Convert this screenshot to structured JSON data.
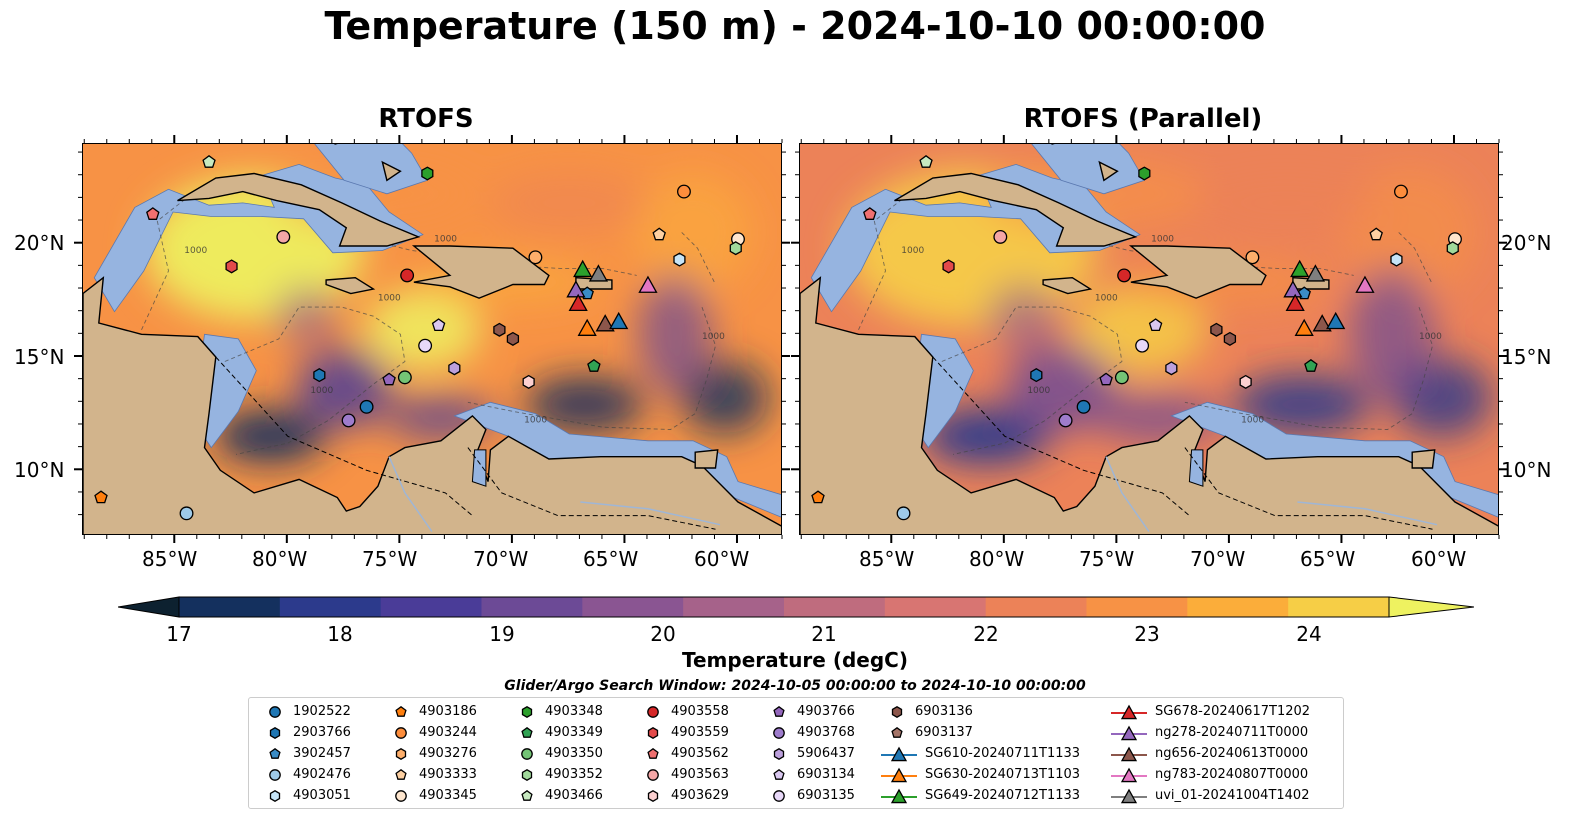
{
  "title": "Temperature (150 m) - 2024-10-10 00:00:00",
  "panels": [
    {
      "title": "RTOFS"
    },
    {
      "title": "RTOFS (Parallel)"
    }
  ],
  "axes": {
    "lon_ticks": [
      "85°W",
      "80°W",
      "75°W",
      "70°W",
      "65°W",
      "60°W"
    ],
    "lat_ticks": [
      "20°N",
      "15°N",
      "10°N"
    ]
  },
  "contour_label": "1000",
  "colorbar": {
    "label": "Temperature (degC)",
    "ticks": [
      "17",
      "18",
      "19",
      "20",
      "21",
      "22",
      "23",
      "24"
    ],
    "colors": [
      "#0d2130",
      "#14305e",
      "#2c3a8c",
      "#4a3c98",
      "#6c4a96",
      "#8a5592",
      "#a6628a",
      "#bf6c7e",
      "#d87572",
      "#ec8258",
      "#f79245",
      "#fbad3a",
      "#f6ce46",
      "#eef260"
    ]
  },
  "search_window": "Glider/Argo Search Window: 2024-10-05 00:00:00 to 2024-10-10 00:00:00",
  "legend": [
    [
      {
        "label": "1902522",
        "shape": "circle",
        "color": "#1f77b4"
      },
      {
        "label": "2903766",
        "shape": "hexagon",
        "color": "#1f77b4"
      },
      {
        "label": "3902457",
        "shape": "pentagon",
        "color": "#3a8cc6"
      },
      {
        "label": "4902476",
        "shape": "circle",
        "color": "#9ecae9"
      },
      {
        "label": "4903051",
        "shape": "hexagon",
        "color": "#c6e4f7"
      }
    ],
    [
      {
        "label": "4903186",
        "shape": "pentagon",
        "color": "#ff7f0e"
      },
      {
        "label": "4903244",
        "shape": "circle",
        "color": "#fd8d3c"
      },
      {
        "label": "4903276",
        "shape": "hexagon",
        "color": "#fdae6b"
      },
      {
        "label": "4903333",
        "shape": "pentagon",
        "color": "#fdd0a2"
      },
      {
        "label": "4903345",
        "shape": "circle",
        "color": "#fee6ce"
      }
    ],
    [
      {
        "label": "4903348",
        "shape": "hexagon",
        "color": "#2ca02c"
      },
      {
        "label": "4903349",
        "shape": "pentagon",
        "color": "#31a354"
      },
      {
        "label": "4903350",
        "shape": "circle",
        "color": "#74c476"
      },
      {
        "label": "4903352",
        "shape": "hexagon",
        "color": "#a1d99b"
      },
      {
        "label": "4903466",
        "shape": "pentagon",
        "color": "#c7e9c0"
      }
    ],
    [
      {
        "label": "4903558",
        "shape": "circle",
        "color": "#d62728"
      },
      {
        "label": "4903559",
        "shape": "hexagon",
        "color": "#e34a4a"
      },
      {
        "label": "4903562",
        "shape": "pentagon",
        "color": "#f07070"
      },
      {
        "label": "4903563",
        "shape": "circle",
        "color": "#f4a6a6"
      },
      {
        "label": "4903629",
        "shape": "hexagon",
        "color": "#fcd0d0"
      }
    ],
    [
      {
        "label": "4903766",
        "shape": "pentagon",
        "color": "#9467bd"
      },
      {
        "label": "4903768",
        "shape": "circle",
        "color": "#9e7ccc"
      },
      {
        "label": "5906437",
        "shape": "hexagon",
        "color": "#bca0dc"
      },
      {
        "label": "6903134",
        "shape": "pentagon",
        "color": "#dac8f0"
      },
      {
        "label": "6903135",
        "shape": "circle",
        "color": "#e8d8f8"
      }
    ],
    [
      {
        "label": "6903136",
        "shape": "hexagon",
        "color": "#8c564b"
      },
      {
        "label": "6903137",
        "shape": "pentagon",
        "color": "#a47468"
      },
      {
        "label": "SG610-20240711T1133",
        "shape": "triangle-line",
        "color": "#1f77b4"
      },
      {
        "label": "SG630-20240713T1103",
        "shape": "triangle-line",
        "color": "#ff7f0e"
      },
      {
        "label": "SG649-20240712T1133",
        "shape": "triangle-line",
        "color": "#2ca02c"
      }
    ],
    [
      {
        "label": "SG678-20240617T1202",
        "shape": "triangle-line",
        "color": "#d62728"
      },
      {
        "label": "ng278-20240711T0000",
        "shape": "triangle-line",
        "color": "#9467bd"
      },
      {
        "label": "ng656-20240613T0000",
        "shape": "triangle-line",
        "color": "#8c564b"
      },
      {
        "label": "ng783-20240807T0000",
        "shape": "triangle-line",
        "color": "#e377c2"
      },
      {
        "label": "uvi_01-20241004T1402",
        "shape": "triangle-line",
        "color": "#7f7f7f"
      }
    ]
  ],
  "markers": [
    {
      "lon": -84.5,
      "lat": 8.1,
      "shape": "circle",
      "color": "#9ecae9"
    },
    {
      "lon": -88.3,
      "lat": 8.8,
      "shape": "pentagon",
      "color": "#ff7f0e"
    },
    {
      "lon": -83.5,
      "lat": 23.6,
      "shape": "pentagon",
      "color": "#c7e9c0"
    },
    {
      "lon": -86.0,
      "lat": 21.3,
      "shape": "pentagon",
      "color": "#f07070"
    },
    {
      "lon": -80.2,
      "lat": 20.3,
      "shape": "circle",
      "color": "#f4a6a6"
    },
    {
      "lon": -82.5,
      "lat": 19.0,
      "shape": "hexagon",
      "color": "#e34a4a"
    },
    {
      "lon": -73.8,
      "lat": 23.1,
      "shape": "hexagon",
      "color": "#2ca02c"
    },
    {
      "lon": -62.4,
      "lat": 22.3,
      "shape": "circle",
      "color": "#fd8d3c"
    },
    {
      "lon": -63.5,
      "lat": 20.4,
      "shape": "pentagon",
      "color": "#fdd0a2"
    },
    {
      "lon": -60.0,
      "lat": 20.2,
      "shape": "circle",
      "color": "#fee6ce"
    },
    {
      "lon": -60.1,
      "lat": 19.8,
      "shape": "hexagon",
      "color": "#a1d99b"
    },
    {
      "lon": -62.6,
      "lat": 19.3,
      "shape": "hexagon",
      "color": "#c6e4f7"
    },
    {
      "lon": -69.0,
      "lat": 19.4,
      "shape": "circle",
      "color": "#fdae6b"
    },
    {
      "lon": -74.7,
      "lat": 18.6,
      "shape": "circle",
      "color": "#d62728"
    },
    {
      "lon": -73.3,
      "lat": 16.4,
      "shape": "pentagon",
      "color": "#dac8f0"
    },
    {
      "lon": -73.9,
      "lat": 15.5,
      "shape": "circle",
      "color": "#e8d8f8"
    },
    {
      "lon": -72.6,
      "lat": 14.5,
      "shape": "hexagon",
      "color": "#bca0dc"
    },
    {
      "lon": -75.5,
      "lat": 14.0,
      "shape": "pentagon",
      "color": "#9467bd"
    },
    {
      "lon": -74.8,
      "lat": 14.1,
      "shape": "circle",
      "color": "#74c476"
    },
    {
      "lon": -78.6,
      "lat": 14.2,
      "shape": "hexagon",
      "color": "#1f77b4"
    },
    {
      "lon": -76.5,
      "lat": 12.8,
      "shape": "circle",
      "color": "#1f77b4"
    },
    {
      "lon": -77.3,
      "lat": 12.2,
      "shape": "circle",
      "color": "#9e7ccc"
    },
    {
      "lon": -70.6,
      "lat": 16.2,
      "shape": "hexagon",
      "color": "#8c564b"
    },
    {
      "lon": -70.0,
      "lat": 15.8,
      "shape": "hexagon",
      "color": "#8c564b"
    },
    {
      "lon": -69.3,
      "lat": 13.9,
      "shape": "hexagon",
      "color": "#fcd0d0"
    },
    {
      "lon": -66.4,
      "lat": 14.6,
      "shape": "pentagon",
      "color": "#31a354"
    },
    {
      "lon": -66.7,
      "lat": 17.8,
      "shape": "pentagon",
      "color": "#3a8cc6"
    },
    {
      "lon": -66.9,
      "lat": 18.8,
      "shape": "triangle",
      "color": "#2ca02c"
    },
    {
      "lon": -66.2,
      "lat": 18.6,
      "shape": "triangle",
      "color": "#7f7f7f"
    },
    {
      "lon": -67.2,
      "lat": 17.9,
      "shape": "triangle",
      "color": "#9467bd"
    },
    {
      "lon": -67.1,
      "lat": 17.3,
      "shape": "triangle",
      "color": "#d62728"
    },
    {
      "lon": -64.0,
      "lat": 18.1,
      "shape": "triangle",
      "color": "#e377c2"
    },
    {
      "lon": -66.7,
      "lat": 16.2,
      "shape": "triangle",
      "color": "#ff7f0e"
    },
    {
      "lon": -65.9,
      "lat": 16.4,
      "shape": "triangle",
      "color": "#8c564b"
    },
    {
      "lon": -65.3,
      "lat": 16.5,
      "shape": "triangle",
      "color": "#1f77b4"
    }
  ]
}
